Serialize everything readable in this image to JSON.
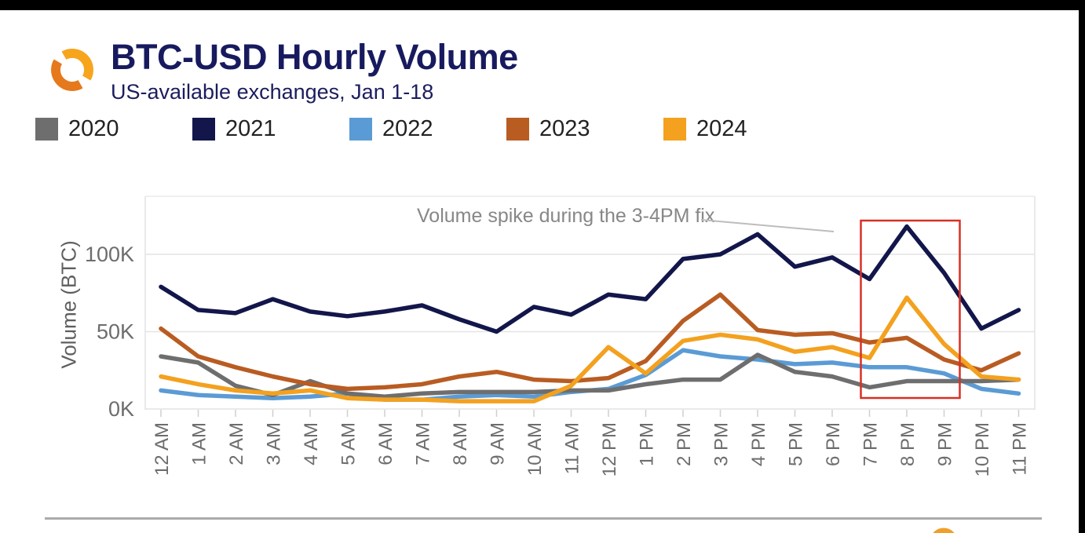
{
  "page": {
    "background": "#ffffff",
    "top_bar_color": "#000000",
    "right_bar_color": "#000000",
    "divider_color": "#ababab"
  },
  "header": {
    "title": "BTC-USD Hourly Volume",
    "subtitle": "US-available exchanges, Jan 1-18",
    "logo_icon": "orange-interlocking-arcs-logo",
    "title_color": "#181a5f",
    "logo_colors": {
      "light": "#f6a51d",
      "dark": "#e5791b"
    }
  },
  "legend": {
    "items": [
      {
        "label": "2020",
        "color": "#6e6e6e"
      },
      {
        "label": "2021",
        "color": "#12164a"
      },
      {
        "label": "2022",
        "color": "#5b9bd5"
      },
      {
        "label": "2023",
        "color": "#b95c22"
      },
      {
        "label": "2024",
        "color": "#f3a11f"
      }
    ]
  },
  "chart_data": {
    "type": "line",
    "title": "BTC-USD Hourly Volume",
    "subtitle": "US-available exchanges, Jan 1-18",
    "xlabel": "",
    "ylabel": "Volume (BTC)",
    "x": [
      "12 AM",
      "1 AM",
      "2 AM",
      "3 AM",
      "4 AM",
      "5 AM",
      "6 AM",
      "7 AM",
      "8 AM",
      "9 AM",
      "10 AM",
      "11 AM",
      "12 PM",
      "1 PM",
      "2 PM",
      "3 PM",
      "4 PM",
      "5 PM",
      "6 PM",
      "7 PM",
      "8 PM",
      "9 PM",
      "10 PM",
      "11 PM"
    ],
    "y_ticks": [
      "0K",
      "50K",
      "100K"
    ],
    "ylim": [
      0,
      130
    ],
    "unit_suffix": "K",
    "grid": true,
    "legend_position": "top",
    "series": [
      {
        "name": "2020",
        "color": "#6e6e6e",
        "values": [
          34,
          30,
          15,
          9,
          18,
          10,
          8,
          10,
          11,
          11,
          11,
          12,
          12,
          16,
          19,
          19,
          35,
          24,
          21,
          14,
          18,
          18,
          18,
          19
        ]
      },
      {
        "name": "2021",
        "color": "#12164a",
        "values": [
          79,
          64,
          62,
          71,
          63,
          60,
          63,
          67,
          58,
          50,
          66,
          61,
          74,
          71,
          97,
          100,
          113,
          92,
          98,
          84,
          118,
          88,
          52,
          64
        ]
      },
      {
        "name": "2022",
        "color": "#5b9bd5",
        "values": [
          12,
          9,
          8,
          7,
          8,
          10,
          6,
          6,
          8,
          9,
          8,
          11,
          13,
          22,
          38,
          34,
          32,
          29,
          30,
          27,
          27,
          23,
          13,
          10
        ]
      },
      {
        "name": "2023",
        "color": "#b95c22",
        "values": [
          52,
          34,
          27,
          21,
          16,
          13,
          14,
          16,
          21,
          24,
          19,
          18,
          20,
          31,
          57,
          74,
          51,
          48,
          49,
          43,
          46,
          32,
          25,
          36
        ]
      },
      {
        "name": "2024",
        "color": "#f3a11f",
        "values": [
          21,
          16,
          12,
          10,
          12,
          7,
          6,
          6,
          5,
          5,
          5,
          15,
          40,
          23,
          44,
          48,
          45,
          37,
          40,
          33,
          72,
          42,
          21,
          19
        ]
      }
    ],
    "annotation": {
      "text": "Volume spike during the 3-4PM fix",
      "highlight_range": [
        "7 PM",
        "9 PM"
      ],
      "highlight_color": "#d93025",
      "leader_color": "#bdbdbd"
    }
  }
}
